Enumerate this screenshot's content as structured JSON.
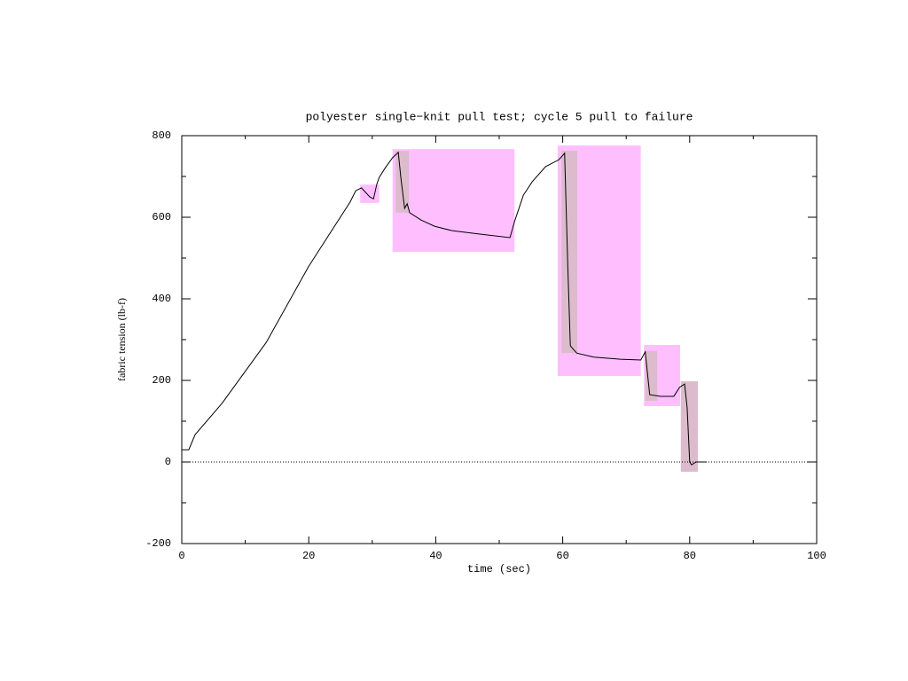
{
  "chart_data": {
    "type": "line",
    "title": "polyester single−knit pull test; cycle 5 pull to failure",
    "xlabel": "time (sec)",
    "ylabel": "fabric tension (lb-f)",
    "xlim": [
      0,
      100
    ],
    "xticks": [
      0,
      20,
      40,
      60,
      80,
      100
    ],
    "ylim": [
      -200,
      800
    ],
    "yticks": [
      -200,
      0,
      200,
      400,
      600,
      800
    ],
    "zero_line": true,
    "series": [
      {
        "color": "#000000",
        "x": [
          0,
          1.1,
          2.1,
          6.3,
          13.3,
          20,
          26.5,
          27.4,
          28.3,
          29.6,
          30.2,
          30.7,
          31.1,
          32,
          33.2,
          34.1,
          34.5,
          35.1,
          35.5,
          35.9,
          37.7,
          39.8,
          42.6,
          46.8,
          51.7,
          52.4,
          53.8,
          55.2,
          57.3,
          59.4,
          60.3,
          60.8,
          61.2,
          62.2,
          64.9,
          69.1,
          72.3,
          73,
          73.7,
          75.4,
          77.5,
          78.4,
          79.2,
          79.6,
          80,
          80.3,
          81,
          82.7
        ],
        "values": [
          30,
          30,
          67,
          143,
          293,
          480,
          637,
          665,
          672,
          650,
          645,
          680,
          698,
          720,
          746,
          759,
          698,
          622,
          633,
          611,
          593,
          578,
          567,
          559,
          550,
          589,
          654,
          687,
          724,
          741,
          757,
          480,
          285,
          267,
          257,
          252,
          250,
          270,
          165,
          161,
          161,
          183,
          191,
          133,
          0,
          -7,
          0,
          0
        ]
      }
    ],
    "highlights": [
      {
        "color": "#ffbfff",
        "x": [
          28.1,
          31.1
        ],
        "y": [
          635,
          680
        ]
      },
      {
        "color": "#ffbfff",
        "x": [
          33.2,
          52.4
        ],
        "y": [
          515,
          767
        ]
      },
      {
        "color": "#ffbfff",
        "x": [
          59.2,
          72.3
        ],
        "y": [
          211,
          776
        ]
      },
      {
        "color": "#ffbfff",
        "x": [
          72.8,
          78.5
        ],
        "y": [
          137,
          287
        ]
      },
      {
        "color": "#dcbccc",
        "x": [
          33.7,
          35.8
        ],
        "y": [
          611,
          763
        ]
      },
      {
        "color": "#dcbccc",
        "x": [
          59.8,
          62.3
        ],
        "y": [
          267,
          763
        ]
      },
      {
        "color": "#dcbccc",
        "x": [
          73,
          74.9
        ],
        "y": [
          150,
          272
        ]
      },
      {
        "color": "#dcbccc",
        "x": [
          78.6,
          81.3
        ],
        "y": [
          -24,
          198
        ]
      }
    ]
  }
}
